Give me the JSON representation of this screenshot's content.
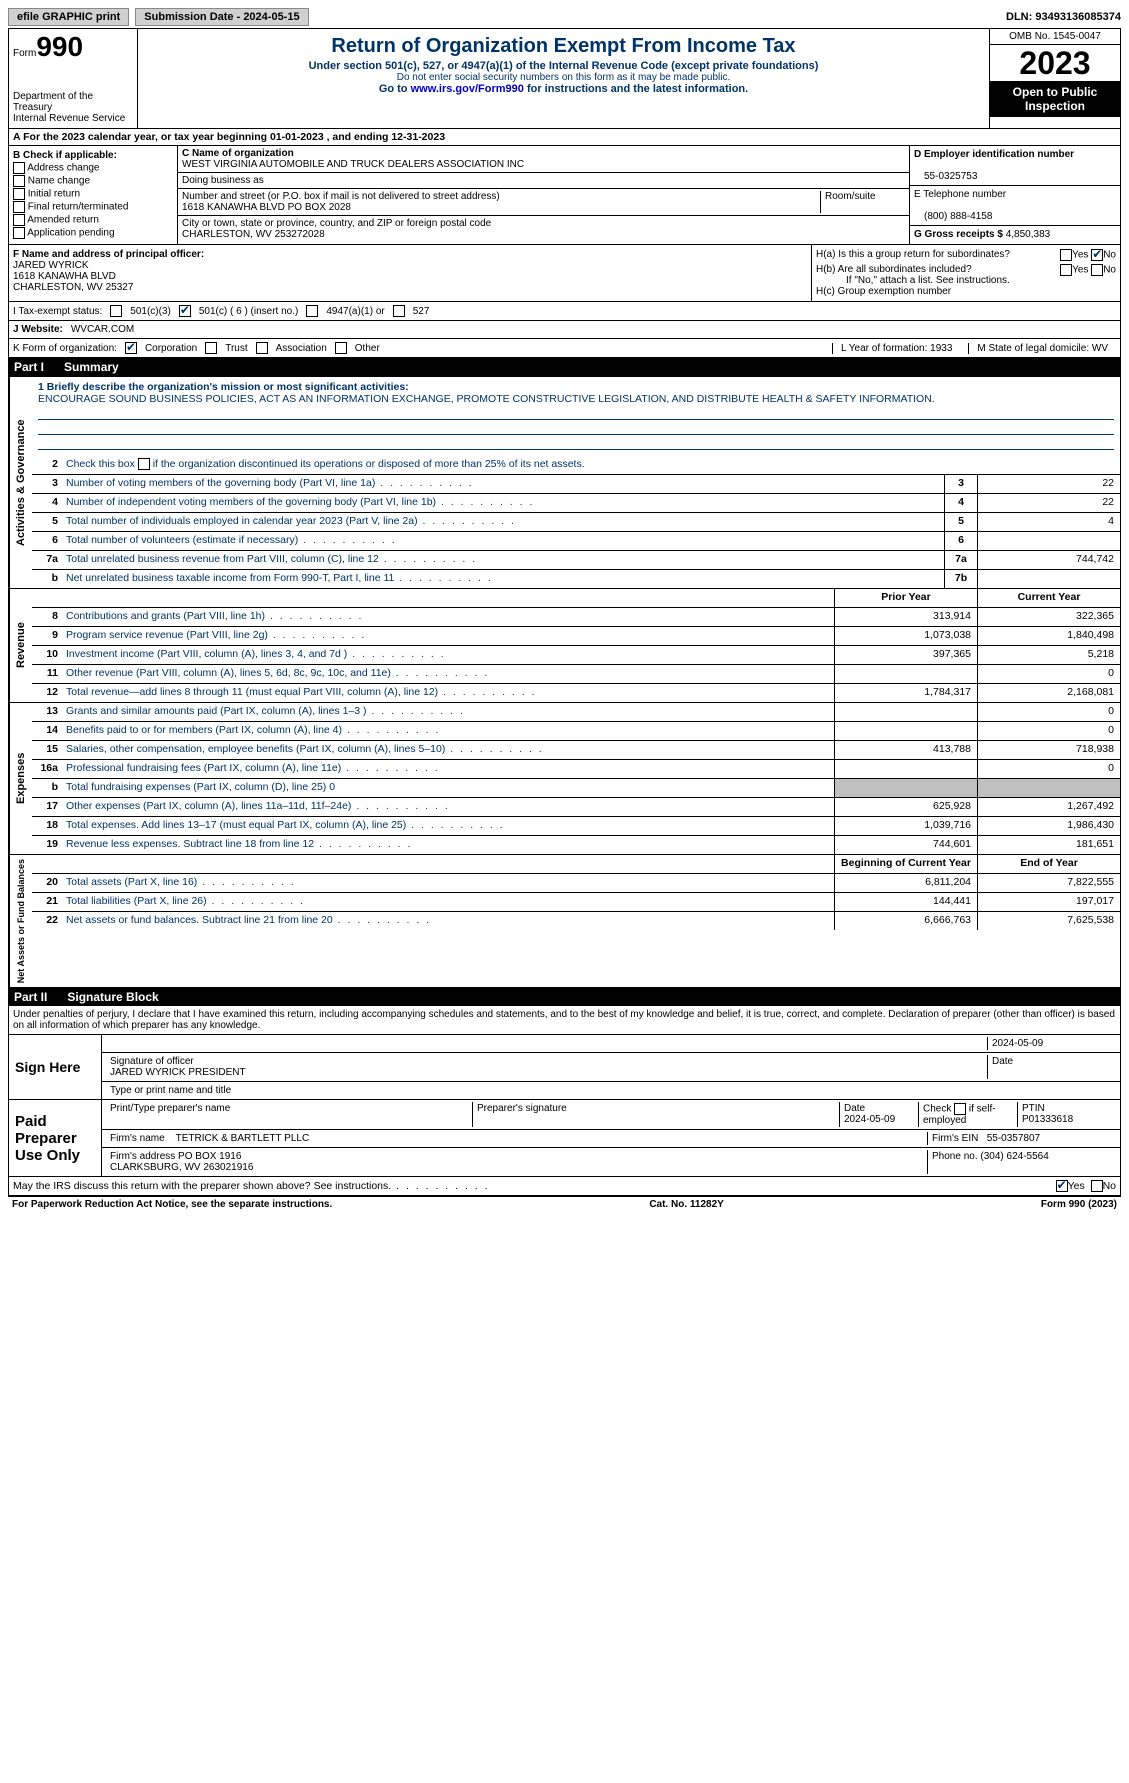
{
  "topbar": {
    "efile": "efile GRAPHIC print",
    "submission": "Submission Date - 2024-05-15",
    "dln": "DLN: 93493136085374"
  },
  "header": {
    "form_label": "Form",
    "form_no": "990",
    "dept": "Department of the Treasury\nInternal Revenue Service",
    "title": "Return of Organization Exempt From Income Tax",
    "subtitle": "Under section 501(c), 527, or 4947(a)(1) of the Internal Revenue Code (except private foundations)",
    "warn": "Do not enter social security numbers on this form as it may be made public.",
    "goto": "Go to www.irs.gov/Form990 for instructions and the latest information.",
    "link": "www.irs.gov/Form990",
    "omb": "OMB No. 1545-0047",
    "year": "2023",
    "open": "Open to Public Inspection"
  },
  "lineA": "A For the 2023 calendar year, or tax year beginning 01-01-2023   , and ending 12-31-2023",
  "boxB": {
    "label": "B Check if applicable:",
    "opts": [
      "Address change",
      "Name change",
      "Initial return",
      "Final return/terminated",
      "Amended return",
      "Application pending"
    ]
  },
  "boxC": {
    "name_label": "C Name of organization",
    "name": "WEST VIRGINIA AUTOMOBILE AND TRUCK DEALERS ASSOCIATION INC",
    "dba_label": "Doing business as",
    "street_label": "Number and street (or P.O. box if mail is not delivered to street address)",
    "room_label": "Room/suite",
    "street": "1618 KANAWHA BLVD PO BOX 2028",
    "city_label": "City or town, state or province, country, and ZIP or foreign postal code",
    "city": "CHARLESTON, WV  253272028"
  },
  "boxD": {
    "label": "D Employer identification number",
    "val": "55-0325753"
  },
  "boxE": {
    "label": "E Telephone number",
    "val": "(800) 888-4158"
  },
  "boxG": {
    "label": "G Gross receipts $",
    "val": "4,850,383"
  },
  "boxF": {
    "label": "F  Name and address of principal officer:",
    "name": "JARED WYRICK",
    "addr1": "1618 KANAWHA BLVD",
    "addr2": "CHARLESTON, WV  25327"
  },
  "boxH": {
    "a": "H(a)  Is this a group return for subordinates?",
    "b": "H(b)  Are all subordinates included?",
    "note": "If \"No,\" attach a list. See instructions.",
    "c": "H(c)  Group exemption number"
  },
  "lineI": {
    "label": "I    Tax-exempt status:",
    "c3": "501(c)(3)",
    "c": "501(c) ( 6 ) (insert no.)",
    "a": "4947(a)(1) or",
    "s527": "527"
  },
  "lineJ": {
    "label": "J    Website:",
    "val": "WVCAR.COM"
  },
  "lineK": {
    "label": "K Form of organization:",
    "opts": [
      "Corporation",
      "Trust",
      "Association",
      "Other"
    ]
  },
  "lineL": "L Year of formation: 1933",
  "lineM": "M State of legal domicile: WV",
  "part1": {
    "no": "Part I",
    "title": "Summary"
  },
  "section_labels": {
    "ag": "Activities & Governance",
    "rev": "Revenue",
    "exp": "Expenses",
    "na": "Net Assets or Fund Balances"
  },
  "mission": {
    "label": "1   Briefly describe the organization's mission or most significant activities:",
    "text": "ENCOURAGE SOUND BUSINESS POLICIES, ACT AS AN INFORMATION EXCHANGE, PROMOTE CONSTRUCTIVE LEGISLATION, AND DISTRIBUTE HEALTH & SAFETY INFORMATION."
  },
  "line2": "Check this box     if the organization discontinued its operations or disposed of more than 25% of its net assets.",
  "ag_lines": [
    {
      "n": "3",
      "d": "Number of voting members of the governing body (Part VI, line 1a)",
      "v": "22"
    },
    {
      "n": "4",
      "d": "Number of independent voting members of the governing body (Part VI, line 1b)",
      "v": "22"
    },
    {
      "n": "5",
      "d": "Total number of individuals employed in calendar year 2023 (Part V, line 2a)",
      "v": "4"
    },
    {
      "n": "6",
      "d": "Total number of volunteers (estimate if necessary)",
      "v": ""
    },
    {
      "n": "7a",
      "d": "Total unrelated business revenue from Part VIII, column (C), line 12",
      "v": "744,742"
    },
    {
      "n": "b",
      "d": "Net unrelated business taxable income from Form 990-T, Part I, line 11",
      "box": "7b",
      "v": ""
    }
  ],
  "col_headers": {
    "prior": "Prior Year",
    "current": "Current Year",
    "begin": "Beginning of Current Year",
    "end": "End of Year"
  },
  "rev_lines": [
    {
      "n": "8",
      "d": "Contributions and grants (Part VIII, line 1h)",
      "p": "313,914",
      "c": "322,365"
    },
    {
      "n": "9",
      "d": "Program service revenue (Part VIII, line 2g)",
      "p": "1,073,038",
      "c": "1,840,498"
    },
    {
      "n": "10",
      "d": "Investment income (Part VIII, column (A), lines 3, 4, and 7d )",
      "p": "397,365",
      "c": "5,218"
    },
    {
      "n": "11",
      "d": "Other revenue (Part VIII, column (A), lines 5, 6d, 8c, 9c, 10c, and 11e)",
      "p": "",
      "c": "0"
    },
    {
      "n": "12",
      "d": "Total revenue—add lines 8 through 11 (must equal Part VIII, column (A), line 12)",
      "p": "1,784,317",
      "c": "2,168,081"
    }
  ],
  "exp_lines": [
    {
      "n": "13",
      "d": "Grants and similar amounts paid (Part IX, column (A), lines 1–3 )",
      "p": "",
      "c": "0"
    },
    {
      "n": "14",
      "d": "Benefits paid to or for members (Part IX, column (A), line 4)",
      "p": "",
      "c": "0"
    },
    {
      "n": "15",
      "d": "Salaries, other compensation, employee benefits (Part IX, column (A), lines 5–10)",
      "p": "413,788",
      "c": "718,938"
    },
    {
      "n": "16a",
      "d": "Professional fundraising fees (Part IX, column (A), line 11e)",
      "p": "",
      "c": "0"
    },
    {
      "n": "b",
      "d": "Total fundraising expenses (Part IX, column (D), line 25) 0",
      "grey": true
    },
    {
      "n": "17",
      "d": "Other expenses (Part IX, column (A), lines 11a–11d, 11f–24e)",
      "p": "625,928",
      "c": "1,267,492"
    },
    {
      "n": "18",
      "d": "Total expenses. Add lines 13–17 (must equal Part IX, column (A), line 25)",
      "p": "1,039,716",
      "c": "1,986,430"
    },
    {
      "n": "19",
      "d": "Revenue less expenses. Subtract line 18 from line 12",
      "p": "744,601",
      "c": "181,651"
    }
  ],
  "na_lines": [
    {
      "n": "20",
      "d": "Total assets (Part X, line 16)",
      "p": "6,811,204",
      "c": "7,822,555"
    },
    {
      "n": "21",
      "d": "Total liabilities (Part X, line 26)",
      "p": "144,441",
      "c": "197,017"
    },
    {
      "n": "22",
      "d": "Net assets or fund balances. Subtract line 21 from line 20",
      "p": "6,666,763",
      "c": "7,625,538"
    }
  ],
  "part2": {
    "no": "Part II",
    "title": "Signature Block"
  },
  "perjury": "Under penalties of perjury, I declare that I have examined this return, including accompanying schedules and statements, and to the best of my knowledge and belief, it is true, correct, and complete. Declaration of preparer (other than officer) is based on all information of which preparer has any knowledge.",
  "sign": {
    "here": "Sign Here",
    "date": "2024-05-09",
    "sig_label": "Signature of officer",
    "officer": "JARED WYRICK  PRESIDENT",
    "type_label": "Type or print name and title",
    "date_label": "Date"
  },
  "paid": {
    "label": "Paid Preparer Use Only",
    "name_label": "Print/Type preparer's name",
    "sig_label": "Preparer's signature",
    "date_label": "Date",
    "date": "2024-05-09",
    "check_label": "Check      if self-employed",
    "ptin_label": "PTIN",
    "ptin": "P01333618",
    "firm_name_label": "Firm's name",
    "firm_name": "TETRICK & BARTLETT PLLC",
    "firm_ein_label": "Firm's EIN",
    "firm_ein": "55-0357807",
    "firm_addr_label": "Firm's address",
    "firm_addr": "PO BOX 1916\nCLARKSBURG, WV  263021916",
    "phone_label": "Phone no.",
    "phone": "(304) 624-5564"
  },
  "discuss": "May the IRS discuss this return with the preparer shown above? See instructions.",
  "footer": {
    "left": "For Paperwork Reduction Act Notice, see the separate instructions.",
    "mid": "Cat. No. 11282Y",
    "right": "Form 990 (2023)"
  }
}
